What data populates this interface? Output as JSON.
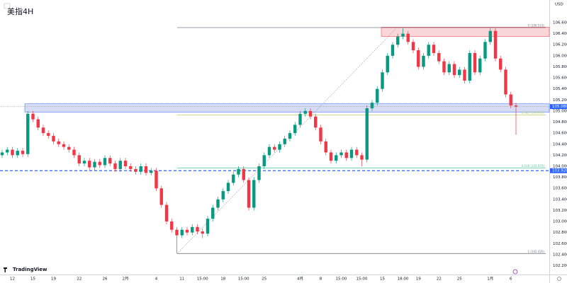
{
  "chart_data": {
    "type": "candlestick",
    "title": "美指4H",
    "currency": "USD",
    "brand": "TradingView",
    "up_color": "#089981",
    "down_color": "#f23645",
    "ylim": [
      102.04,
      107.01
    ],
    "yticks": [
      {
        "value": 102.2,
        "label": "102.200"
      },
      {
        "value": 102.4,
        "label": "102.400"
      },
      {
        "value": 102.6,
        "label": "102.600"
      },
      {
        "value": 102.8,
        "label": "102.800"
      },
      {
        "value": 103.0,
        "label": "103.000"
      },
      {
        "value": 103.2,
        "label": "103.200"
      },
      {
        "value": 103.4,
        "label": "103.400"
      },
      {
        "value": 103.6,
        "label": "103.600"
      },
      {
        "value": 103.8,
        "label": "103.800"
      },
      {
        "value": 104.0,
        "label": "104.000"
      },
      {
        "value": 104.2,
        "label": "104.200"
      },
      {
        "value": 104.4,
        "label": "104.400"
      },
      {
        "value": 104.6,
        "label": "104.600"
      },
      {
        "value": 104.8,
        "label": "104.800"
      },
      {
        "value": 105.0,
        "label": "105.000"
      },
      {
        "value": 105.2,
        "label": "105.200"
      },
      {
        "value": 105.4,
        "label": "105.400"
      },
      {
        "value": 105.6,
        "label": "105.600"
      },
      {
        "value": 105.8,
        "label": "105.800"
      },
      {
        "value": 106.0,
        "label": "106.000"
      },
      {
        "value": 106.2,
        "label": "106.200"
      },
      {
        "value": 106.4,
        "label": "106.400"
      },
      {
        "value": 106.6,
        "label": "106.600"
      }
    ],
    "categories": [
      null,
      null,
      "12",
      null,
      null,
      null,
      "15",
      null,
      null,
      null,
      "19",
      null,
      null,
      null,
      null,
      "22",
      null,
      null,
      null,
      null,
      "26",
      null,
      null,
      null,
      "2月",
      null,
      null,
      null,
      null,
      null,
      "4",
      null,
      null,
      null,
      null,
      "11",
      null,
      null,
      null,
      "15:00",
      null,
      null,
      null,
      "18",
      null,
      null,
      null,
      "15:00",
      null,
      null,
      null,
      "25",
      null,
      null,
      null,
      null,
      null,
      null,
      "4月",
      null,
      null,
      null,
      "8",
      null,
      null,
      null,
      "15:00",
      null,
      null,
      null,
      "15:00",
      null,
      null,
      null,
      "15",
      null,
      null,
      null,
      "18:00",
      null,
      null,
      "19",
      null,
      null,
      null,
      "22",
      null,
      null,
      null,
      "25",
      null,
      null,
      null,
      null,
      null,
      "1月",
      null,
      null,
      null,
      "6",
      null
    ],
    "open": [
      104.2,
      104.25,
      104.3,
      104.2,
      104.28,
      104.22,
      104.95,
      104.85,
      104.7,
      104.6,
      104.55,
      104.45,
      104.4,
      104.35,
      104.3,
      104.2,
      104.05,
      104.1,
      103.98,
      104.08,
      104.02,
      104.15,
      104.05,
      103.95,
      104.1,
      104.0,
      103.95,
      103.9,
      104.0,
      103.88,
      103.92,
      103.6,
      103.3,
      103.0,
      102.85,
      102.75,
      102.85,
      102.8,
      102.9,
      102.82,
      102.78,
      103.05,
      103.25,
      103.4,
      103.55,
      103.7,
      103.85,
      103.95,
      103.75,
      103.25,
      103.75,
      104.0,
      104.2,
      104.35,
      104.3,
      104.4,
      104.5,
      104.6,
      104.75,
      104.95,
      105.0,
      104.9,
      104.7,
      104.45,
      104.25,
      104.1,
      104.2,
      104.25,
      104.15,
      104.3,
      104.2,
      104.12,
      105.05,
      105.15,
      105.4,
      105.7,
      106.0,
      106.2,
      106.35,
      106.4,
      106.25,
      106.1,
      105.8,
      106.0,
      106.2,
      106.05,
      105.9,
      105.7,
      105.85,
      105.65,
      105.75,
      105.55,
      106.05,
      105.7,
      105.95,
      106.25,
      106.45,
      105.95,
      105.75,
      105.3,
      105.1
    ],
    "high": [
      104.3,
      104.35,
      104.35,
      104.33,
      104.33,
      105.0,
      105.0,
      104.9,
      104.75,
      104.65,
      104.6,
      104.5,
      104.45,
      104.4,
      104.35,
      104.25,
      104.15,
      104.15,
      104.13,
      104.13,
      104.2,
      104.2,
      104.1,
      104.15,
      104.15,
      104.05,
      104.0,
      104.05,
      104.05,
      103.97,
      103.97,
      103.65,
      103.35,
      103.05,
      102.9,
      102.9,
      102.9,
      102.95,
      102.95,
      102.87,
      103.1,
      103.3,
      103.45,
      103.6,
      103.75,
      103.9,
      104.0,
      104.0,
      103.8,
      103.8,
      104.05,
      104.25,
      104.4,
      104.4,
      104.45,
      104.55,
      104.65,
      104.8,
      105.0,
      105.05,
      105.05,
      104.95,
      104.75,
      104.5,
      104.3,
      104.25,
      104.3,
      104.3,
      104.35,
      104.35,
      104.25,
      105.1,
      105.2,
      105.45,
      105.75,
      106.05,
      106.25,
      106.4,
      106.5,
      106.45,
      106.3,
      106.15,
      106.05,
      106.25,
      106.25,
      106.1,
      105.95,
      105.9,
      105.9,
      105.8,
      105.8,
      106.1,
      106.1,
      106.0,
      106.3,
      106.5,
      106.5,
      106.0,
      105.8,
      105.35,
      105.15
    ],
    "low": [
      104.15,
      104.2,
      104.15,
      104.15,
      104.17,
      104.17,
      104.8,
      104.65,
      104.55,
      104.5,
      104.4,
      104.35,
      104.3,
      104.25,
      104.15,
      104.0,
      104.0,
      103.93,
      103.93,
      103.97,
      103.97,
      104.0,
      103.9,
      103.9,
      103.95,
      103.9,
      103.85,
      103.85,
      103.83,
      103.83,
      103.55,
      103.25,
      102.95,
      102.8,
      102.42,
      102.7,
      102.75,
      102.75,
      102.77,
      102.7,
      102.73,
      103.0,
      103.2,
      103.35,
      103.5,
      103.65,
      103.8,
      103.7,
      103.2,
      103.2,
      103.7,
      103.95,
      104.15,
      104.25,
      104.25,
      104.35,
      104.45,
      104.55,
      104.7,
      104.9,
      104.85,
      104.65,
      104.4,
      104.2,
      104.05,
      104.05,
      104.15,
      104.1,
      104.1,
      104.15,
      104.0,
      104.07,
      105.0,
      105.1,
      105.35,
      105.65,
      105.95,
      106.15,
      106.3,
      106.2,
      106.05,
      105.75,
      105.75,
      105.95,
      106.0,
      105.85,
      105.65,
      105.65,
      105.6,
      105.6,
      105.5,
      105.5,
      105.65,
      105.65,
      105.9,
      106.2,
      105.9,
      105.7,
      105.25,
      105.05,
      104.57
    ],
    "close": [
      104.25,
      104.3,
      104.2,
      104.28,
      104.22,
      104.95,
      104.85,
      104.7,
      104.6,
      104.55,
      104.45,
      104.4,
      104.35,
      104.3,
      104.2,
      104.05,
      104.1,
      103.98,
      104.08,
      104.02,
      104.15,
      104.05,
      103.95,
      104.1,
      104.0,
      103.95,
      103.9,
      104.0,
      103.88,
      103.92,
      103.6,
      103.3,
      103.0,
      102.85,
      102.75,
      102.85,
      102.8,
      102.9,
      102.82,
      102.78,
      103.05,
      103.25,
      103.4,
      103.55,
      103.7,
      103.85,
      103.95,
      103.75,
      103.25,
      103.75,
      104.0,
      104.2,
      104.35,
      104.3,
      104.4,
      104.5,
      104.6,
      104.75,
      104.95,
      105.0,
      104.9,
      104.7,
      104.45,
      104.25,
      104.1,
      104.2,
      104.25,
      104.15,
      104.3,
      104.2,
      104.12,
      105.05,
      105.15,
      105.4,
      105.7,
      106.0,
      106.2,
      106.35,
      106.4,
      106.25,
      106.1,
      105.8,
      106.0,
      106.2,
      106.05,
      105.9,
      105.7,
      105.85,
      105.65,
      105.75,
      105.55,
      106.05,
      105.7,
      105.95,
      106.25,
      106.45,
      105.95,
      105.75,
      105.3,
      105.1,
      105.08
    ],
    "zones": [
      {
        "from": 106.35,
        "to": 106.52,
        "color": "#f7c6c9"
      },
      {
        "from": 104.98,
        "to": 105.13,
        "color": "#c5cdf0"
      }
    ],
    "levels": [
      {
        "value": 106.51,
        "label": "0 (106.510)",
        "color": "#787b86"
      },
      {
        "value": 104.93,
        "label": "0.382 (104.930)",
        "color": "#b8d36a"
      },
      {
        "value": 103.97,
        "label": "0.618 (103.970)",
        "color": "#5fc7a6"
      },
      {
        "value": 102.42,
        "label": "1 (102.420)",
        "color": "#787b86"
      }
    ],
    "support": {
      "value": 103.92,
      "label": "103.920",
      "color": "#2962ff"
    },
    "last": {
      "value": 105.08,
      "label": "105.080",
      "color": "#2962ff"
    }
  }
}
